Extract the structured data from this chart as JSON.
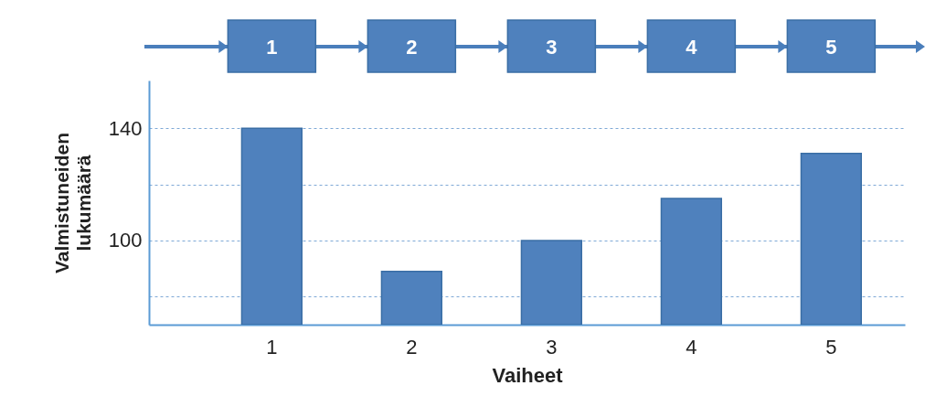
{
  "chart_data": {
    "type": "bar",
    "xlabel": "Vaiheet",
    "ylabel": "Valmistuneiden lukumäärä",
    "categories": [
      "1",
      "2",
      "3",
      "4",
      "5"
    ],
    "values": [
      140,
      89,
      100,
      115,
      131
    ],
    "color": "#4f81bd",
    "ylim": [
      70,
      157
    ],
    "yticks": [
      {
        "value": 80,
        "label": null
      },
      100,
      {
        "value": 120,
        "label": null
      },
      140
    ],
    "grid": "y"
  }
}
